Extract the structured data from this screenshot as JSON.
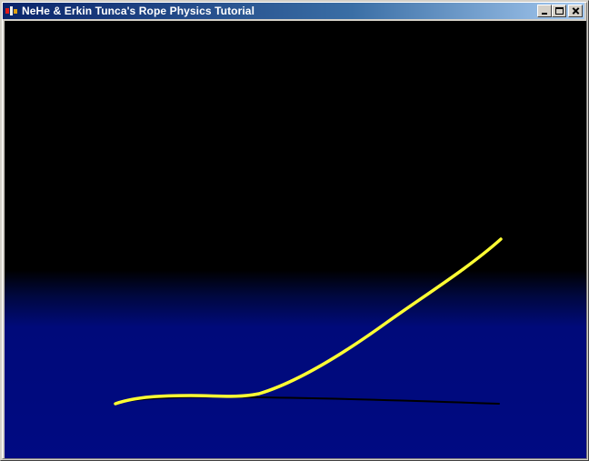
{
  "window": {
    "title": "NeHe & Erkin Tunca's Rope Physics Tutorial",
    "app_icon": "nehe-app-icon",
    "controls": {
      "minimize_icon": "minimize-icon",
      "maximize_icon": "maximize-icon",
      "close_icon": "close-icon"
    }
  },
  "scene": {
    "sky_color": "#000000",
    "ground_color": "#000a82",
    "rope_color": "#ffff33",
    "shadow_color": "#000000"
  }
}
